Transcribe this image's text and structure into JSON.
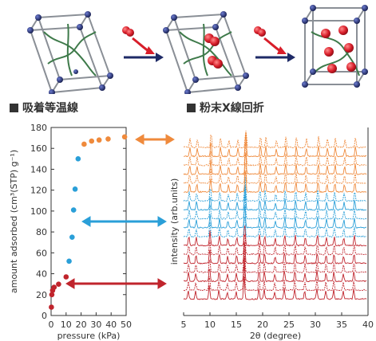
{
  "header_illustration": {
    "description_icons": [
      "framework-cell-icon",
      "gas-molecule-icon",
      "arrow-right-icon"
    ]
  },
  "sections": {
    "left_title": "吸着等温線",
    "right_title": "粉末X線回折"
  },
  "chart_data": [
    {
      "type": "scatter",
      "xlabel": "pressure (kPa)",
      "ylabel": "amount adsorbed (cm³(STP) g⁻¹)",
      "xlim": [
        0,
        50
      ],
      "ylim": [
        0,
        180
      ],
      "xticks": [
        0,
        10,
        20,
        30,
        40,
        50
      ],
      "yticks": [
        0,
        20,
        40,
        60,
        80,
        100,
        120,
        140,
        160,
        180
      ],
      "grid": false,
      "series": [
        {
          "color": "#c0242c",
          "x": [
            0.2,
            0.5,
            1,
            2,
            5,
            10
          ],
          "y": [
            8,
            20,
            24,
            27,
            30,
            37
          ]
        },
        {
          "color": "#2a9fd8",
          "x": [
            12,
            14,
            15,
            16,
            18
          ],
          "y": [
            52,
            75,
            101,
            121,
            150
          ]
        },
        {
          "color": "#ef8a3c",
          "x": [
            22,
            27,
            32,
            38,
            49
          ],
          "y": [
            164,
            167,
            168,
            169,
            171
          ]
        }
      ]
    },
    {
      "type": "line",
      "xlabel": "2θ (degree)",
      "ylabel": "intensity (arb.units)",
      "xlim": [
        5,
        40
      ],
      "xticks": [
        5,
        10,
        15,
        20,
        25,
        30,
        35,
        40
      ],
      "peaks": [
        6.0,
        7.4,
        10.0,
        11.8,
        13.4,
        15.1,
        16.6,
        19.4,
        20.4,
        22.4,
        24.2,
        26.2,
        28.1,
        30.4,
        32.1,
        33.6,
        35.4,
        37.4
      ],
      "groups": [
        {
          "color": "#c0242c",
          "count": 7
        },
        {
          "color": "#2a9fd8",
          "count": 5
        },
        {
          "color": "#ef8a3c",
          "count": 6
        }
      ]
    }
  ],
  "colors": {
    "red": "#c0242c",
    "blue": "#2a9fd8",
    "orange": "#ef8a3c",
    "atom": "#1e2a66",
    "frame": "#8a8f96",
    "linker": "#3e7a4a"
  }
}
